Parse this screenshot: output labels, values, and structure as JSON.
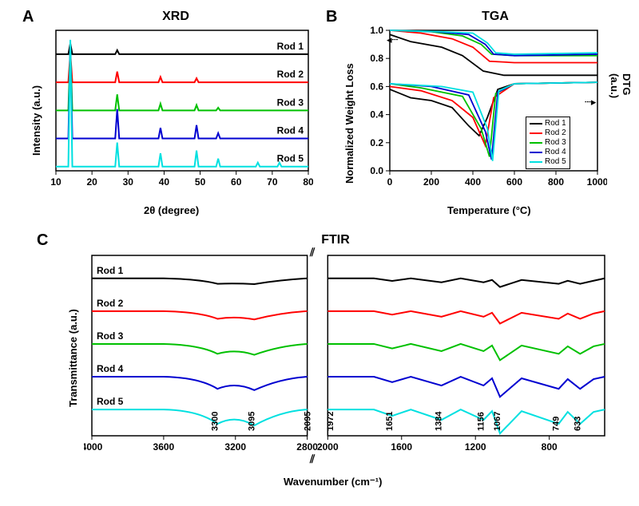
{
  "panelA": {
    "label": "A",
    "title": "XRD",
    "xlabel": "2θ (degree)",
    "ylabel": "Intensity (a.u.)",
    "xlim": [
      10,
      80
    ],
    "xticks": [
      10,
      20,
      30,
      40,
      50,
      60,
      70,
      80
    ],
    "background_color": "#ffffff",
    "axis_color": "#000000",
    "line_width": 2,
    "series": [
      {
        "name": "Rod 1",
        "color": "#000000",
        "offset": 5,
        "peaks": [
          {
            "x": 14,
            "h": 0.08
          },
          {
            "x": 27,
            "h": 0.03
          }
        ]
      },
      {
        "name": "Rod 2",
        "color": "#ff0000",
        "offset": 4,
        "peaks": [
          {
            "x": 14,
            "h": 0.22
          },
          {
            "x": 27,
            "h": 0.08
          },
          {
            "x": 39,
            "h": 0.04
          },
          {
            "x": 49,
            "h": 0.03
          }
        ]
      },
      {
        "name": "Rod 3",
        "color": "#00c000",
        "offset": 3,
        "peaks": [
          {
            "x": 14,
            "h": 0.45
          },
          {
            "x": 27,
            "h": 0.12
          },
          {
            "x": 39,
            "h": 0.05
          },
          {
            "x": 49,
            "h": 0.04
          },
          {
            "x": 55,
            "h": 0.02
          }
        ]
      },
      {
        "name": "Rod 4",
        "color": "#0000d0",
        "offset": 2,
        "peaks": [
          {
            "x": 14,
            "h": 0.7
          },
          {
            "x": 27,
            "h": 0.22
          },
          {
            "x": 39,
            "h": 0.08
          },
          {
            "x": 49,
            "h": 0.1
          },
          {
            "x": 55,
            "h": 0.04
          }
        ]
      },
      {
        "name": "Rod 5",
        "color": "#00e0e0",
        "offset": 1,
        "peaks": [
          {
            "x": 14,
            "h": 0.95
          },
          {
            "x": 27,
            "h": 0.18
          },
          {
            "x": 39,
            "h": 0.1
          },
          {
            "x": 49,
            "h": 0.12
          },
          {
            "x": 55,
            "h": 0.06
          },
          {
            "x": 66,
            "h": 0.03
          },
          {
            "x": 72,
            "h": 0.03
          }
        ]
      }
    ]
  },
  "panelB": {
    "label": "B",
    "title": "TGA",
    "xlabel": "Temperature (°C)",
    "ylabel_left": "Normalized Weight Loss",
    "ylabel_right": "DTG (a.u.)",
    "xlim": [
      0,
      1000
    ],
    "ylim": [
      0.0,
      1.0
    ],
    "xticks": [
      0,
      200,
      400,
      600,
      800,
      1000
    ],
    "yticks": [
      0.0,
      0.2,
      0.4,
      0.6,
      0.8,
      1.0
    ],
    "background_color": "#ffffff",
    "axis_color": "#000000",
    "line_width": 1.8,
    "legend": [
      "Rod 1",
      "Rod 2",
      "Rod 3",
      "Rod 4",
      "Rod 5"
    ],
    "colors": {
      "Rod 1": "#000000",
      "Rod 2": "#ff0000",
      "Rod 3": "#00c000",
      "Rod 4": "#0000d0",
      "Rod 5": "#00e0e0"
    },
    "tga_curves": {
      "Rod 1": [
        [
          0,
          0.97
        ],
        [
          100,
          0.92
        ],
        [
          250,
          0.88
        ],
        [
          350,
          0.82
        ],
        [
          450,
          0.71
        ],
        [
          550,
          0.68
        ],
        [
          1000,
          0.68
        ]
      ],
      "Rod 2": [
        [
          0,
          1.0
        ],
        [
          150,
          0.98
        ],
        [
          300,
          0.94
        ],
        [
          400,
          0.88
        ],
        [
          480,
          0.78
        ],
        [
          600,
          0.77
        ],
        [
          1000,
          0.77
        ]
      ],
      "Rod 3": [
        [
          0,
          1.0
        ],
        [
          200,
          0.99
        ],
        [
          350,
          0.96
        ],
        [
          440,
          0.9
        ],
        [
          490,
          0.83
        ],
        [
          600,
          0.82
        ],
        [
          1000,
          0.82
        ]
      ],
      "Rod 4": [
        [
          0,
          1.0
        ],
        [
          220,
          0.99
        ],
        [
          380,
          0.97
        ],
        [
          460,
          0.9
        ],
        [
          500,
          0.83
        ],
        [
          600,
          0.82
        ],
        [
          1000,
          0.83
        ]
      ],
      "Rod 5": [
        [
          0,
          1.0
        ],
        [
          250,
          0.99
        ],
        [
          400,
          0.98
        ],
        [
          470,
          0.91
        ],
        [
          510,
          0.84
        ],
        [
          600,
          0.83
        ],
        [
          1000,
          0.84
        ]
      ]
    },
    "dtg_curves": {
      "Rod 1": [
        [
          0,
          0.58
        ],
        [
          100,
          0.52
        ],
        [
          200,
          0.5
        ],
        [
          300,
          0.45
        ],
        [
          380,
          0.32
        ],
        [
          430,
          0.25
        ],
        [
          470,
          0.38
        ],
        [
          520,
          0.58
        ],
        [
          600,
          0.62
        ],
        [
          1000,
          0.63
        ]
      ],
      "Rod 2": [
        [
          0,
          0.6
        ],
        [
          150,
          0.57
        ],
        [
          300,
          0.5
        ],
        [
          400,
          0.38
        ],
        [
          460,
          0.18
        ],
        [
          500,
          0.52
        ],
        [
          600,
          0.62
        ],
        [
          1000,
          0.63
        ]
      ],
      "Rod 3": [
        [
          0,
          0.62
        ],
        [
          150,
          0.59
        ],
        [
          350,
          0.53
        ],
        [
          440,
          0.3
        ],
        [
          480,
          0.1
        ],
        [
          510,
          0.55
        ],
        [
          600,
          0.62
        ],
        [
          1000,
          0.63
        ]
      ],
      "Rod 4": [
        [
          0,
          0.62
        ],
        [
          200,
          0.6
        ],
        [
          380,
          0.54
        ],
        [
          460,
          0.28
        ],
        [
          490,
          0.08
        ],
        [
          520,
          0.56
        ],
        [
          600,
          0.62
        ],
        [
          1000,
          0.63
        ]
      ],
      "Rod 5": [
        [
          0,
          0.62
        ],
        [
          250,
          0.6
        ],
        [
          400,
          0.56
        ],
        [
          470,
          0.3
        ],
        [
          495,
          0.07
        ],
        [
          525,
          0.57
        ],
        [
          600,
          0.62
        ],
        [
          1000,
          0.63
        ]
      ]
    }
  },
  "panelC": {
    "label": "C",
    "title": "FTIR",
    "xlabel": "Wavenumber (cm⁻¹)",
    "ylabel": "Transmittance (a.u.)",
    "xlim_left": [
      4000,
      2800
    ],
    "xlim_right": [
      2000,
      500
    ],
    "xticks_left": [
      4000,
      3600,
      3200,
      2800
    ],
    "xticks_right": [
      2000,
      1600,
      1200,
      800
    ],
    "background_color": "#ffffff",
    "axis_color": "#000000",
    "line_width": 2,
    "peak_labels": [
      "3300",
      "3095",
      "2095",
      "1972",
      "1651",
      "1384",
      "1156",
      "1067",
      "749",
      "633"
    ],
    "peak_x": [
      3300,
      3095,
      2095,
      1972,
      1651,
      1384,
      1156,
      1067,
      749,
      633
    ],
    "series": [
      {
        "name": "Rod 1",
        "color": "#000000"
      },
      {
        "name": "Rod 2",
        "color": "#ff0000"
      },
      {
        "name": "Rod 3",
        "color": "#00c000"
      },
      {
        "name": "Rod 4",
        "color": "#0000d0"
      },
      {
        "name": "Rod 5",
        "color": "#00e0e0"
      }
    ]
  }
}
